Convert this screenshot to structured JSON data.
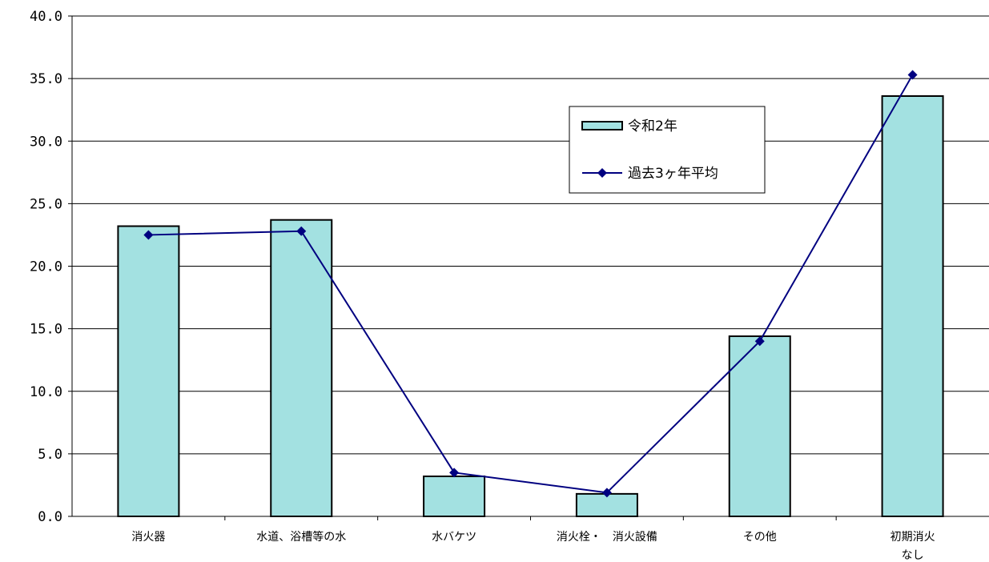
{
  "chart_data": {
    "type": "bar",
    "categories": [
      [
        "消火器"
      ],
      [
        "水道、浴槽等の水"
      ],
      [
        "水バケツ"
      ],
      [
        "消火栓・　消火設備"
      ],
      [
        "その他"
      ],
      [
        "初期消火",
        "なし"
      ]
    ],
    "series": [
      {
        "name": "令和2年",
        "type": "bar",
        "values": [
          23.2,
          23.7,
          3.2,
          1.8,
          14.4,
          33.6
        ],
        "color": "#a3e1e1"
      },
      {
        "name": "過去3ヶ年平均",
        "type": "line",
        "values": [
          22.5,
          22.8,
          3.5,
          1.9,
          14.0,
          35.3
        ],
        "color": "#000080"
      }
    ],
    "ylim": [
      0,
      40
    ],
    "yticks": [
      "0.0",
      "5.0",
      "10.0",
      "15.0",
      "20.0",
      "25.0",
      "30.0",
      "35.0",
      "40.0"
    ],
    "grid": true,
    "legend_position": "top-right"
  }
}
